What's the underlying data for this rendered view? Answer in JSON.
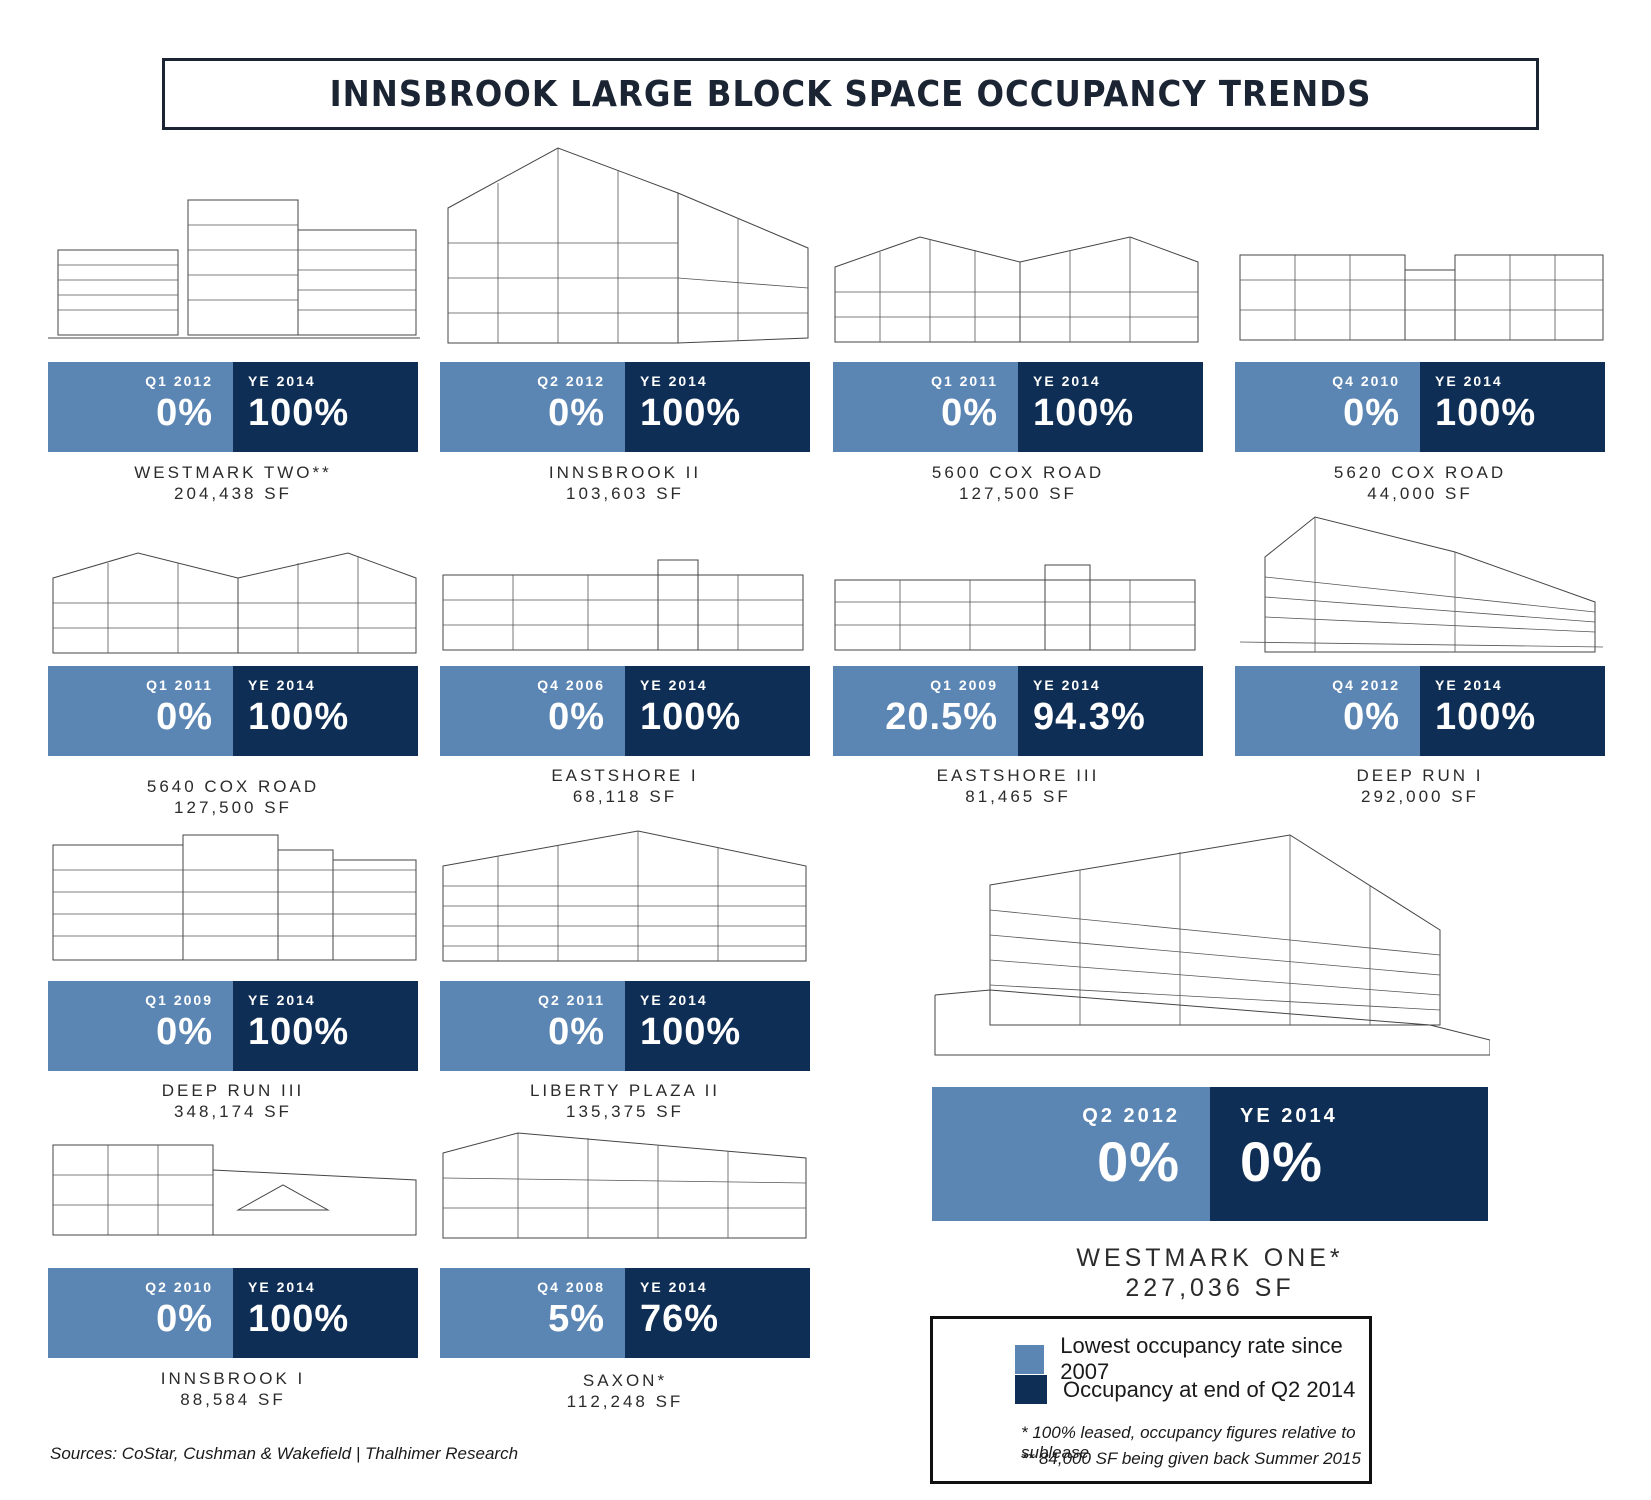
{
  "title": "INNSBROOK LARGE BLOCK SPACE OCCUPANCY TRENDS",
  "colors": {
    "lowest": "#5b86b4",
    "current": "#0e2e55"
  },
  "chart_data": {
    "type": "table",
    "title": "INNSBROOK LARGE BLOCK SPACE OCCUPANCY TRENDS",
    "columns": [
      "Lowest occupancy rate since 2007",
      "Occupancy at end of Q2 2014"
    ],
    "buildings": [
      {
        "name": "WESTMARK TWO**",
        "size": "204,438 SF",
        "low_period": "Q1 2012",
        "low_value": "0%",
        "current_period": "YE 2014",
        "current_value": "100%"
      },
      {
        "name": "INNSBROOK II",
        "size": "103,603 SF",
        "low_period": "Q2 2012",
        "low_value": "0%",
        "current_period": "YE 2014",
        "current_value": "100%"
      },
      {
        "name": "5600 COX ROAD",
        "size": "127,500 SF",
        "low_period": "Q1 2011",
        "low_value": "0%",
        "current_period": "YE 2014",
        "current_value": "100%"
      },
      {
        "name": "5620 COX ROAD",
        "size": "44,000 SF",
        "low_period": "Q4 2010",
        "low_value": "0%",
        "current_period": "YE 2014",
        "current_value": "100%"
      },
      {
        "name": "5640 COX ROAD",
        "size": "127,500 SF",
        "low_period": "Q1 2011",
        "low_value": "0%",
        "current_period": "YE 2014",
        "current_value": "100%"
      },
      {
        "name": "EASTSHORE I",
        "size": "68,118 SF",
        "low_period": "Q4 2006",
        "low_value": "0%",
        "current_period": "YE 2014",
        "current_value": "100%"
      },
      {
        "name": "EASTSHORE III",
        "size": "81,465 SF",
        "low_period": "Q1 2009",
        "low_value": "20.5%",
        "current_period": "YE 2014",
        "current_value": "94.3%"
      },
      {
        "name": "DEEP RUN I",
        "size": "292,000 SF",
        "low_period": "Q4 2012",
        "low_value": "0%",
        "current_period": "YE 2014",
        "current_value": "100%"
      },
      {
        "name": "DEEP RUN III",
        "size": "348,174 SF",
        "low_period": "Q1 2009",
        "low_value": "0%",
        "current_period": "YE 2014",
        "current_value": "100%"
      },
      {
        "name": "LIBERTY PLAZA II",
        "size": "135,375 SF",
        "low_period": "Q2 2011",
        "low_value": "0%",
        "current_period": "YE 2014",
        "current_value": "100%"
      },
      {
        "name": "INNSBROOK I",
        "size": "88,584 SF",
        "low_period": "Q2 2010",
        "low_value": "0%",
        "current_period": "YE 2014",
        "current_value": "100%"
      },
      {
        "name": "SAXON*",
        "size": "112,248 SF",
        "low_period": "Q4 2008",
        "low_value": "5%",
        "current_period": "YE 2014",
        "current_value": "76%"
      },
      {
        "name": "WESTMARK ONE*",
        "size": "227,036 SF",
        "low_period": "Q2 2012",
        "low_value": "0%",
        "current_period": "YE 2014",
        "current_value": "0%"
      }
    ]
  },
  "legend": {
    "lowest_label": "Lowest occupancy rate since 2007",
    "current_label": "Occupancy at end of Q2 2014",
    "note1": "* 100% leased, occupancy figures relative to sublease",
    "note2": "** 84,000 SF being given back Summer 2015"
  },
  "sources": "Sources: CoStar, Cushman & Wakefield | Thalhimer Research"
}
